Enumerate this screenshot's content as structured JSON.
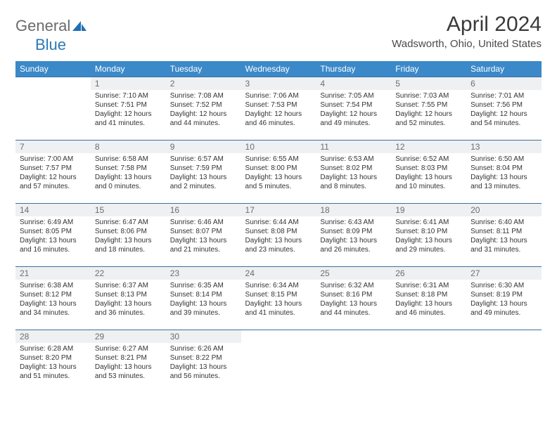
{
  "logo": {
    "textA": "General",
    "textB": "Blue",
    "brand_color": "#2a7ab8",
    "gray": "#6b6b6b"
  },
  "title": "April 2024",
  "location": "Wadsworth, Ohio, United States",
  "header_bg": "#3b89c9",
  "header_fg": "#ffffff",
  "border_color": "#3b6fa0",
  "shade_color": "#eef0f1",
  "day_headers": [
    "Sunday",
    "Monday",
    "Tuesday",
    "Wednesday",
    "Thursday",
    "Friday",
    "Saturday"
  ],
  "weeks": [
    [
      null,
      {
        "n": "1",
        "sunrise": "Sunrise: 7:10 AM",
        "sunset": "Sunset: 7:51 PM",
        "day1": "Daylight: 12 hours",
        "day2": "and 41 minutes."
      },
      {
        "n": "2",
        "sunrise": "Sunrise: 7:08 AM",
        "sunset": "Sunset: 7:52 PM",
        "day1": "Daylight: 12 hours",
        "day2": "and 44 minutes."
      },
      {
        "n": "3",
        "sunrise": "Sunrise: 7:06 AM",
        "sunset": "Sunset: 7:53 PM",
        "day1": "Daylight: 12 hours",
        "day2": "and 46 minutes."
      },
      {
        "n": "4",
        "sunrise": "Sunrise: 7:05 AM",
        "sunset": "Sunset: 7:54 PM",
        "day1": "Daylight: 12 hours",
        "day2": "and 49 minutes."
      },
      {
        "n": "5",
        "sunrise": "Sunrise: 7:03 AM",
        "sunset": "Sunset: 7:55 PM",
        "day1": "Daylight: 12 hours",
        "day2": "and 52 minutes."
      },
      {
        "n": "6",
        "sunrise": "Sunrise: 7:01 AM",
        "sunset": "Sunset: 7:56 PM",
        "day1": "Daylight: 12 hours",
        "day2": "and 54 minutes."
      }
    ],
    [
      {
        "n": "7",
        "sunrise": "Sunrise: 7:00 AM",
        "sunset": "Sunset: 7:57 PM",
        "day1": "Daylight: 12 hours",
        "day2": "and 57 minutes."
      },
      {
        "n": "8",
        "sunrise": "Sunrise: 6:58 AM",
        "sunset": "Sunset: 7:58 PM",
        "day1": "Daylight: 13 hours",
        "day2": "and 0 minutes."
      },
      {
        "n": "9",
        "sunrise": "Sunrise: 6:57 AM",
        "sunset": "Sunset: 7:59 PM",
        "day1": "Daylight: 13 hours",
        "day2": "and 2 minutes."
      },
      {
        "n": "10",
        "sunrise": "Sunrise: 6:55 AM",
        "sunset": "Sunset: 8:00 PM",
        "day1": "Daylight: 13 hours",
        "day2": "and 5 minutes."
      },
      {
        "n": "11",
        "sunrise": "Sunrise: 6:53 AM",
        "sunset": "Sunset: 8:02 PM",
        "day1": "Daylight: 13 hours",
        "day2": "and 8 minutes."
      },
      {
        "n": "12",
        "sunrise": "Sunrise: 6:52 AM",
        "sunset": "Sunset: 8:03 PM",
        "day1": "Daylight: 13 hours",
        "day2": "and 10 minutes."
      },
      {
        "n": "13",
        "sunrise": "Sunrise: 6:50 AM",
        "sunset": "Sunset: 8:04 PM",
        "day1": "Daylight: 13 hours",
        "day2": "and 13 minutes."
      }
    ],
    [
      {
        "n": "14",
        "sunrise": "Sunrise: 6:49 AM",
        "sunset": "Sunset: 8:05 PM",
        "day1": "Daylight: 13 hours",
        "day2": "and 16 minutes."
      },
      {
        "n": "15",
        "sunrise": "Sunrise: 6:47 AM",
        "sunset": "Sunset: 8:06 PM",
        "day1": "Daylight: 13 hours",
        "day2": "and 18 minutes."
      },
      {
        "n": "16",
        "sunrise": "Sunrise: 6:46 AM",
        "sunset": "Sunset: 8:07 PM",
        "day1": "Daylight: 13 hours",
        "day2": "and 21 minutes."
      },
      {
        "n": "17",
        "sunrise": "Sunrise: 6:44 AM",
        "sunset": "Sunset: 8:08 PM",
        "day1": "Daylight: 13 hours",
        "day2": "and 23 minutes."
      },
      {
        "n": "18",
        "sunrise": "Sunrise: 6:43 AM",
        "sunset": "Sunset: 8:09 PM",
        "day1": "Daylight: 13 hours",
        "day2": "and 26 minutes."
      },
      {
        "n": "19",
        "sunrise": "Sunrise: 6:41 AM",
        "sunset": "Sunset: 8:10 PM",
        "day1": "Daylight: 13 hours",
        "day2": "and 29 minutes."
      },
      {
        "n": "20",
        "sunrise": "Sunrise: 6:40 AM",
        "sunset": "Sunset: 8:11 PM",
        "day1": "Daylight: 13 hours",
        "day2": "and 31 minutes."
      }
    ],
    [
      {
        "n": "21",
        "sunrise": "Sunrise: 6:38 AM",
        "sunset": "Sunset: 8:12 PM",
        "day1": "Daylight: 13 hours",
        "day2": "and 34 minutes."
      },
      {
        "n": "22",
        "sunrise": "Sunrise: 6:37 AM",
        "sunset": "Sunset: 8:13 PM",
        "day1": "Daylight: 13 hours",
        "day2": "and 36 minutes."
      },
      {
        "n": "23",
        "sunrise": "Sunrise: 6:35 AM",
        "sunset": "Sunset: 8:14 PM",
        "day1": "Daylight: 13 hours",
        "day2": "and 39 minutes."
      },
      {
        "n": "24",
        "sunrise": "Sunrise: 6:34 AM",
        "sunset": "Sunset: 8:15 PM",
        "day1": "Daylight: 13 hours",
        "day2": "and 41 minutes."
      },
      {
        "n": "25",
        "sunrise": "Sunrise: 6:32 AM",
        "sunset": "Sunset: 8:16 PM",
        "day1": "Daylight: 13 hours",
        "day2": "and 44 minutes."
      },
      {
        "n": "26",
        "sunrise": "Sunrise: 6:31 AM",
        "sunset": "Sunset: 8:18 PM",
        "day1": "Daylight: 13 hours",
        "day2": "and 46 minutes."
      },
      {
        "n": "27",
        "sunrise": "Sunrise: 6:30 AM",
        "sunset": "Sunset: 8:19 PM",
        "day1": "Daylight: 13 hours",
        "day2": "and 49 minutes."
      }
    ],
    [
      {
        "n": "28",
        "sunrise": "Sunrise: 6:28 AM",
        "sunset": "Sunset: 8:20 PM",
        "day1": "Daylight: 13 hours",
        "day2": "and 51 minutes."
      },
      {
        "n": "29",
        "sunrise": "Sunrise: 6:27 AM",
        "sunset": "Sunset: 8:21 PM",
        "day1": "Daylight: 13 hours",
        "day2": "and 53 minutes."
      },
      {
        "n": "30",
        "sunrise": "Sunrise: 6:26 AM",
        "sunset": "Sunset: 8:22 PM",
        "day1": "Daylight: 13 hours",
        "day2": "and 56 minutes."
      },
      null,
      null,
      null,
      null
    ]
  ]
}
